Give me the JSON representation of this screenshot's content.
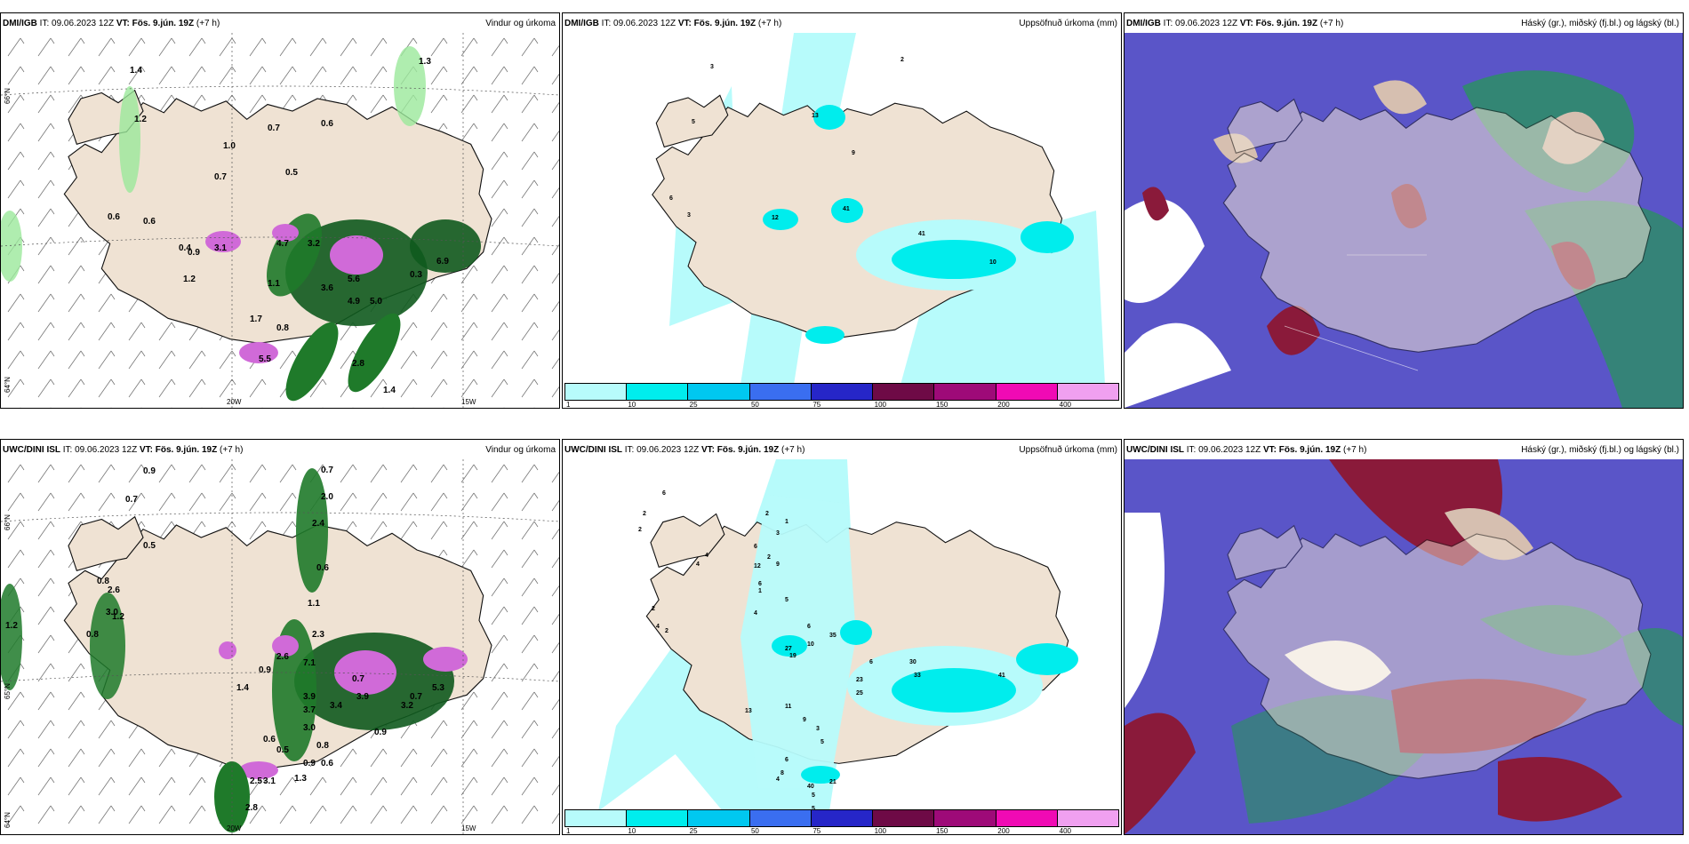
{
  "panels": {
    "p1": {
      "model": "DMI/IGB",
      "it_label": "IT:",
      "it_value": "09.06.2023 12Z",
      "vt_label": "VT:",
      "vt_value": "Fös. 9.jún. 19Z",
      "lead": "(+7 h)",
      "title": "Vindur og úrkoma"
    },
    "p2": {
      "model": "DMI/IGB",
      "it_label": "IT:",
      "it_value": "09.06.2023 12Z",
      "vt_label": "VT:",
      "vt_value": "Fös. 9.jún. 19Z",
      "lead": "(+7 h)",
      "title": "Uppsöfnuð úrkoma (mm)"
    },
    "p3": {
      "model": "DMI/IGB",
      "it_label": "IT:",
      "it_value": "09.06.2023 12Z",
      "vt_label": "VT:",
      "vt_value": "Fös. 9.jún. 19Z",
      "lead": "(+7 h)",
      "title": "Háský (gr.), miðský (fj.bl.) og lágský (bl.)"
    },
    "p4": {
      "model": "UWC/DINI ISL",
      "it_label": "IT:",
      "it_value": "09.06.2023 12Z",
      "vt_label": "VT:",
      "vt_value": "Fös. 9.jún. 19Z",
      "lead": "(+7 h)",
      "title": "Vindur og úrkoma"
    },
    "p5": {
      "model": "UWC/DINI ISL",
      "it_label": "IT:",
      "it_value": "09.06.2023 12Z",
      "vt_label": "VT:",
      "vt_value": "Fös. 9.jún. 19Z",
      "lead": "(+7 h)",
      "title": "Uppsöfnuð úrkoma (mm)"
    },
    "p6": {
      "model": "UWC/DINI ISL",
      "it_label": "IT:",
      "it_value": "09.06.2023 12Z",
      "vt_label": "VT:",
      "vt_value": "Fös. 9.jún. 19Z",
      "lead": "(+7 h)",
      "title": "Háský (gr.), miðský (fj.bl.) og lágský (bl.)"
    }
  },
  "axes": {
    "lat66": "66°N",
    "lat65": "65°N",
    "lat64": "64°N",
    "lon20": "20W",
    "lon15": "15W"
  },
  "colorbar": {
    "ticks": [
      "1",
      "10",
      "25",
      "50",
      "75",
      "100",
      "150",
      "200",
      "400"
    ],
    "colors": [
      "#b7fbfb",
      "#00eded",
      "#00c8f0",
      "#3a6ef0",
      "#2626c8",
      "#6e0a46",
      "#9e0a78",
      "#f00ab4",
      "#f0a0f0"
    ]
  },
  "precip_labels_p1": [
    "1.3",
    "1.4",
    "1.2",
    "1.0",
    "0.7",
    "0.6",
    "0.7",
    "0.5",
    "0.6",
    "0.6",
    "0.4",
    "4.7",
    "3.2",
    "0.9",
    "3.1",
    "1.2",
    "1.1",
    "5.6",
    "0.3",
    "6.9",
    "3.6",
    "4.9",
    "5.0",
    "1.7",
    "0.8",
    "5.5",
    "2.8",
    "1.4"
  ],
  "precip_labels_p4": [
    "0.9",
    "0.7",
    "0.7",
    "2.0",
    "2.4",
    "0.5",
    "0.8",
    "2.6",
    "1.2",
    "3.0",
    "1.2",
    "0.8",
    "0.6",
    "1.1",
    "2.3",
    "2.6",
    "7.1",
    "0.9",
    "1.4",
    "0.7",
    "3.9",
    "3.7",
    "3.0",
    "3.4",
    "3.9",
    "3.2",
    "5.3",
    "0.7",
    "0.9",
    "0.6",
    "0.5",
    "0.8",
    "0.9",
    "1.3",
    "0.6",
    "2.5",
    "3.1",
    "2.8"
  ],
  "accum_labels_p2": [
    "3",
    "2",
    "5",
    "13",
    "9",
    "6",
    "3",
    "12",
    "41",
    "41",
    "10"
  ],
  "accum_labels_p5": [
    "6",
    "2",
    "2",
    "2",
    "1",
    "3",
    "12",
    "6",
    "9",
    "2",
    "4",
    "4",
    "6",
    "1",
    "4",
    "2",
    "5",
    "4",
    "2",
    "6",
    "10",
    "35",
    "27",
    "19",
    "6",
    "30",
    "33",
    "41",
    "23",
    "25",
    "13",
    "11",
    "9",
    "3",
    "5",
    "6",
    "4",
    "8",
    "40",
    "21",
    "5",
    "5"
  ]
}
